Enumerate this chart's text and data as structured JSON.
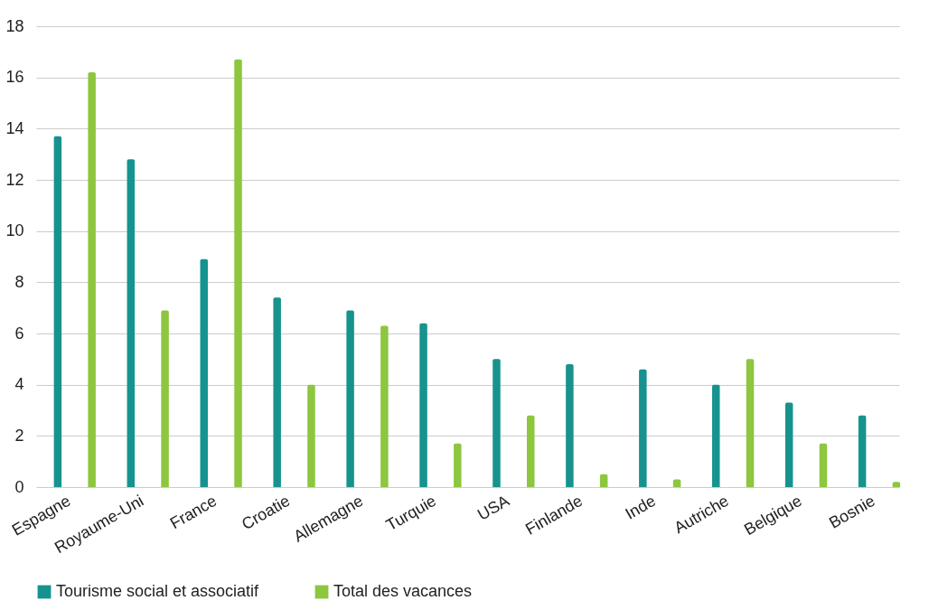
{
  "chart_data": {
    "type": "bar",
    "categories": [
      "Espagne",
      "Royaume-Uni",
      "France",
      "Croatie",
      "Allemagne",
      "Turquie",
      "USA",
      "Finlande",
      "Inde",
      "Autriche",
      "Belgique",
      "Bosnie"
    ],
    "series": [
      {
        "name": "Tourisme social et associatif",
        "color": "#17938f",
        "values": [
          13.7,
          12.8,
          8.9,
          7.4,
          6.9,
          6.4,
          5.0,
          4.8,
          4.6,
          4.0,
          3.3,
          2.8
        ]
      },
      {
        "name": "Total des vacances",
        "color": "#8dc63f",
        "values": [
          16.2,
          6.9,
          16.7,
          4.0,
          6.3,
          1.7,
          2.8,
          0.5,
          0.3,
          5.0,
          1.7,
          0.2
        ]
      }
    ],
    "ylim": [
      0,
      18
    ],
    "yticks": [
      0,
      2,
      4,
      6,
      8,
      10,
      12,
      14,
      16,
      18
    ],
    "grid": "y",
    "legend": "bottom"
  }
}
